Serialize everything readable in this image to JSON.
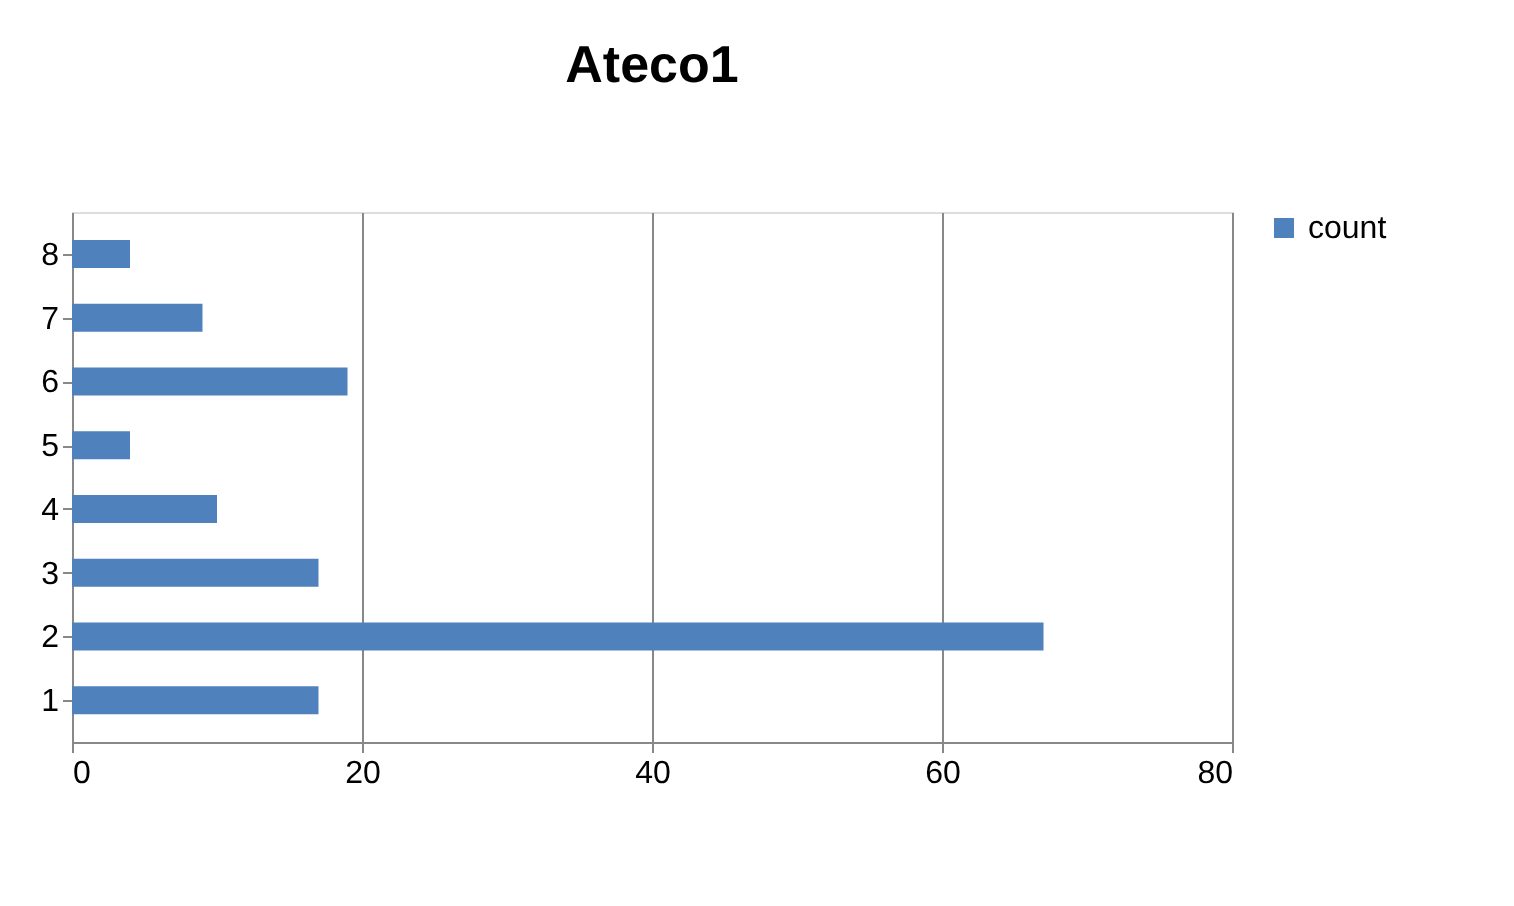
{
  "chart_data": {
    "type": "bar",
    "orientation": "horizontal",
    "title": "Ateco1",
    "categories": [
      "8",
      "7",
      "6",
      "5",
      "4",
      "3",
      "2",
      "1"
    ],
    "series": [
      {
        "name": "count",
        "color": "#4f81bd",
        "values": [
          4,
          9,
          19,
          4,
          10,
          17,
          67,
          17
        ]
      }
    ],
    "xlim": [
      0,
      80
    ],
    "xticks": [
      0,
      20,
      40,
      60,
      80
    ],
    "grid": "x",
    "legend": "right"
  }
}
